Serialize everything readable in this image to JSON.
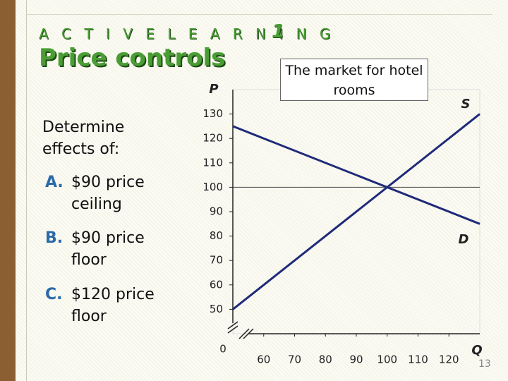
{
  "header": {
    "kicker": "A C T I V E   L E A R N I N G",
    "kicker_number": "1",
    "title": "Price controls"
  },
  "prompt": "Determine effects of:",
  "items": [
    {
      "letter": "A.",
      "text": "$90 price ceiling"
    },
    {
      "letter": "B.",
      "text": "$90 price floor"
    },
    {
      "letter": "C.",
      "text": "$120 price floor"
    }
  ],
  "page_number": "13",
  "chart_data": {
    "type": "line",
    "title": "The market for hotel rooms",
    "y_label": "P",
    "x_label": "Q",
    "origin_label": "0",
    "x": [
      50,
      130
    ],
    "series": [
      {
        "name": "S",
        "color": "#1f2a7a",
        "values": [
          50,
          130
        ]
      },
      {
        "name": "D",
        "color": "#1f2a7a",
        "values": [
          125,
          85
        ]
      }
    ],
    "xlim": [
      50,
      130
    ],
    "ylim": [
      40,
      140
    ],
    "xticks": [
      60,
      70,
      80,
      90,
      100,
      110,
      120
    ],
    "yticks": [
      50,
      60,
      70,
      80,
      90,
      100,
      110,
      120,
      130
    ],
    "hlines": [
      100
    ]
  }
}
